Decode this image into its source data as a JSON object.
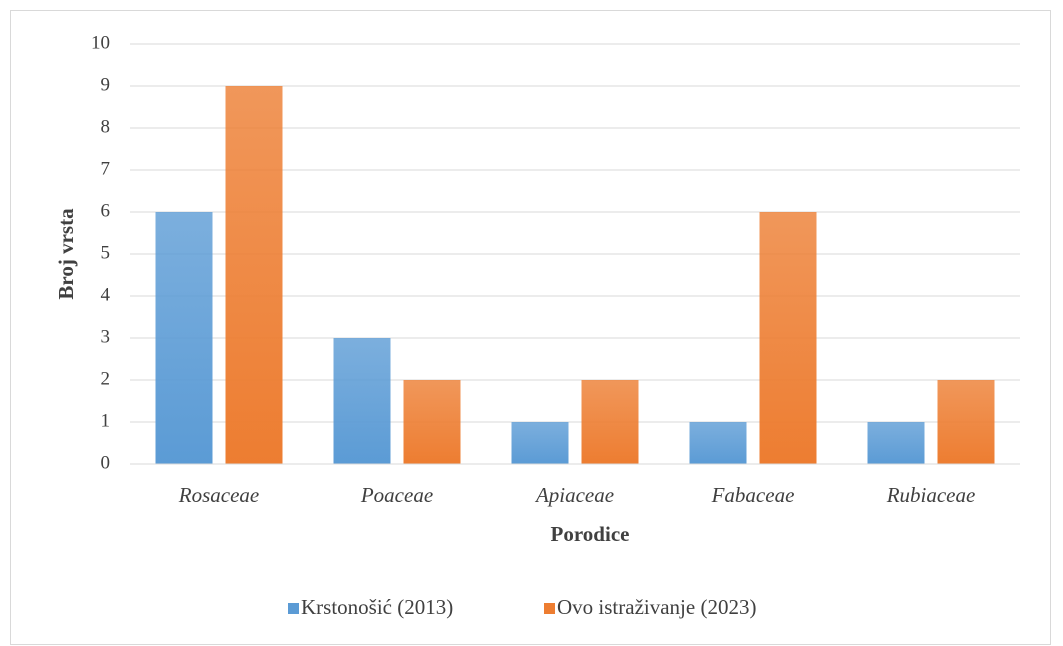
{
  "chart_data": {
    "type": "bar",
    "categories": [
      "Rosaceae",
      "Poaceae",
      "Apiaceae",
      "Fabaceae",
      "Rubiaceae"
    ],
    "series": [
      {
        "name": "Krstonošić (2013)",
        "color": "#5b9bd5",
        "values": [
          6,
          3,
          1,
          1,
          1
        ]
      },
      {
        "name": "Ovo istraživanje (2023)",
        "color": "#ed7d31",
        "values": [
          9,
          2,
          2,
          6,
          2
        ]
      }
    ],
    "xlabel": "Porodice",
    "ylabel": "Broj vrsta",
    "ylim": [
      0,
      10
    ],
    "yticks": [
      0,
      1,
      2,
      3,
      4,
      5,
      6,
      7,
      8,
      9,
      10
    ],
    "grid": true,
    "legend": "bottom"
  }
}
